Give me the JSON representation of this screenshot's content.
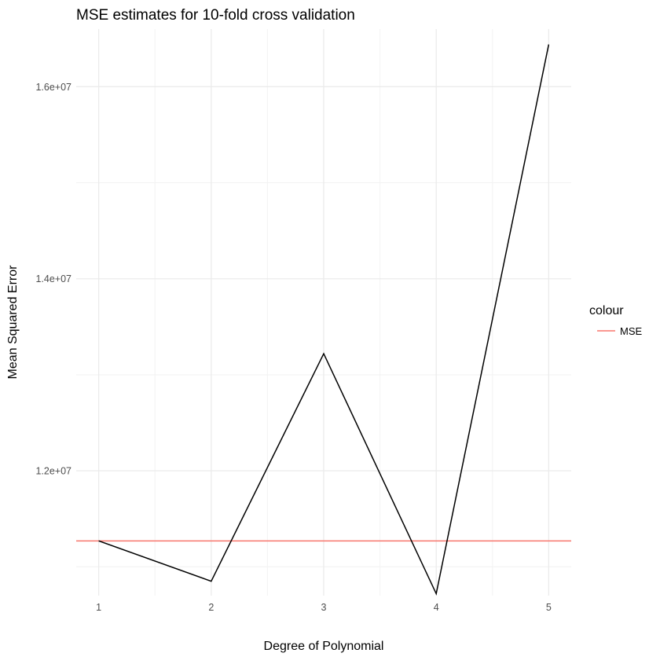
{
  "chart_data": {
    "type": "line",
    "title": "MSE estimates for 10-fold cross validation",
    "xlabel": "Degree of Polynomial",
    "ylabel": "Mean Squared Error",
    "x": [
      1,
      2,
      3,
      4,
      5
    ],
    "x_ticks": [
      "1",
      "2",
      "3",
      "4",
      "5"
    ],
    "y_ticks": [
      {
        "value": 12000000,
        "label": "1.2e+07"
      },
      {
        "value": 14000000,
        "label": "1.4e+07"
      },
      {
        "value": 16000000,
        "label": "1.6e+07"
      }
    ],
    "xlim": [
      0.8,
      5.2
    ],
    "ylim": [
      10700000,
      16600000
    ],
    "grid": true,
    "series": [
      {
        "values": [
          11270000,
          10850000,
          13220000,
          10720000,
          16440000
        ],
        "color": "#000000"
      }
    ],
    "reference_line": {
      "name": "MSE",
      "value": 11270000,
      "color": "#f8766d"
    },
    "legend": {
      "title": "colour",
      "placement": "right",
      "entries": [
        "MSE"
      ]
    }
  }
}
